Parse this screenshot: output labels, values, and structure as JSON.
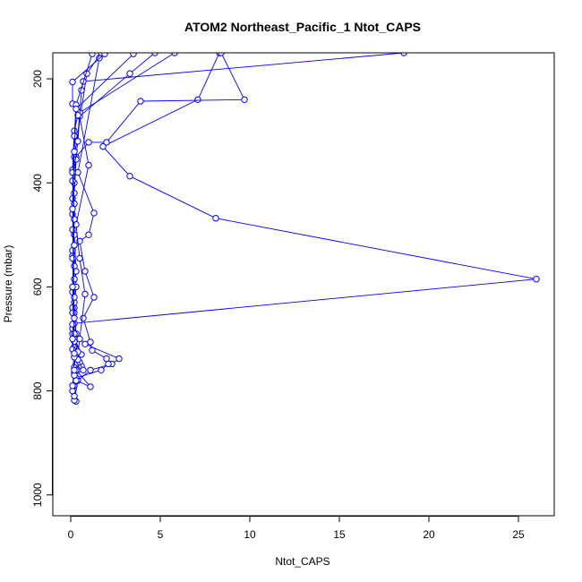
{
  "chart_data": {
    "type": "line",
    "title": "ATOM2 Northeast_Pacific_1 Ntot_CAPS",
    "xlabel": "Ntot_CAPS",
    "ylabel": "Pressure (mbar)",
    "xlim": [
      -1,
      27
    ],
    "ylim": [
      1040,
      150
    ],
    "y_reversed": true,
    "grid": false,
    "legend": "none",
    "xticks": [
      0,
      5,
      10,
      15,
      20,
      25
    ],
    "yticks": [
      200,
      400,
      600,
      800,
      1000
    ],
    "colors": {
      "series": "#0000ff",
      "axis": "#000000",
      "background": "#ffffff"
    },
    "marker": "open-circle",
    "series": [
      {
        "points": [
          [
            0.3,
            820
          ],
          [
            0.2,
            790
          ],
          [
            0.3,
            760
          ],
          [
            0.2,
            735
          ],
          [
            0.3,
            700
          ],
          [
            0.2,
            670
          ],
          [
            26.0,
            585
          ],
          [
            8.1,
            468
          ],
          [
            3.3,
            387
          ],
          [
            1.8,
            330
          ],
          [
            7.1,
            240
          ],
          [
            8.3,
            150
          ]
        ]
      },
      {
        "points": [
          [
            0.2,
            818
          ],
          [
            0.4,
            780
          ],
          [
            1.1,
            760
          ],
          [
            2.3,
            748
          ],
          [
            2.7,
            738
          ],
          [
            0.8,
            710
          ],
          [
            0.3,
            690
          ],
          [
            0.2,
            640
          ],
          [
            0.3,
            600
          ],
          [
            0.2,
            520
          ],
          [
            0.1,
            460
          ],
          [
            0.2,
            400
          ],
          [
            0.3,
            350
          ],
          [
            1.0,
            322
          ],
          [
            2.0,
            322
          ],
          [
            3.9,
            243
          ],
          [
            9.7,
            240
          ],
          [
            8.4,
            150
          ]
        ]
      },
      {
        "points": [
          [
            0.2,
            810
          ],
          [
            0.3,
            775
          ],
          [
            1.7,
            760
          ],
          [
            2.1,
            748
          ],
          [
            2.0,
            738
          ],
          [
            1.2,
            722
          ],
          [
            1.1,
            706
          ],
          [
            0.7,
            660
          ],
          [
            1.3,
            620
          ],
          [
            0.8,
            570
          ],
          [
            0.5,
            512
          ],
          [
            1.0,
            500
          ],
          [
            1.3,
            458
          ],
          [
            0.4,
            380
          ],
          [
            1.6,
            160
          ],
          [
            1.9,
            150
          ]
        ]
      },
      {
        "points": [
          [
            0.1,
            800
          ],
          [
            0.2,
            765
          ],
          [
            0.3,
            748
          ],
          [
            0.6,
            752
          ],
          [
            0.4,
            730
          ],
          [
            0.5,
            700
          ],
          [
            0.8,
            614
          ],
          [
            0.5,
            545
          ],
          [
            0.3,
            480
          ],
          [
            1.0,
            366
          ],
          [
            0.5,
            272
          ],
          [
            3.3,
            190
          ],
          [
            4.7,
            150
          ]
        ]
      },
      {
        "points": [
          [
            0.1,
            790
          ],
          [
            0.2,
            755
          ],
          [
            0.3,
            720
          ],
          [
            0.6,
            730
          ],
          [
            0.1,
            690
          ],
          [
            0.2,
            650
          ],
          [
            0.1,
            610
          ],
          [
            0.3,
            570
          ],
          [
            0.2,
            500
          ],
          [
            0.1,
            430
          ],
          [
            0.2,
            350
          ],
          [
            0.9,
            190
          ],
          [
            1.7,
            150
          ]
        ]
      },
      {
        "points": [
          [
            0.3,
            780
          ],
          [
            1.1,
            792
          ],
          [
            0.3,
            760
          ],
          [
            0.5,
            745
          ],
          [
            0.2,
            700
          ],
          [
            0.1,
            640
          ],
          [
            0.2,
            560
          ],
          [
            0.1,
            490
          ],
          [
            0.2,
            420
          ],
          [
            0.3,
            355
          ],
          [
            0.5,
            265
          ],
          [
            5.8,
            150
          ]
        ]
      },
      {
        "points": [
          [
            0.2,
            770
          ],
          [
            0.7,
            760
          ],
          [
            0.4,
            740
          ],
          [
            0.2,
            715
          ],
          [
            0.1,
            680
          ],
          [
            0.2,
            630
          ],
          [
            0.1,
            540
          ],
          [
            0.2,
            470
          ],
          [
            0.1,
            396
          ],
          [
            0.4,
            320
          ],
          [
            0.6,
            222
          ],
          [
            0.7,
            205
          ],
          [
            18.6,
            150
          ]
        ]
      },
      {
        "points": [
          [
            0.2,
            760
          ],
          [
            0.1,
            720
          ],
          [
            0.2,
            690
          ],
          [
            0.1,
            650
          ],
          [
            0.2,
            585
          ],
          [
            0.1,
            530
          ],
          [
            0.2,
            440
          ],
          [
            0.1,
            375
          ],
          [
            0.2,
            300
          ],
          [
            0.4,
            270
          ],
          [
            0.1,
            248
          ],
          [
            0.1,
            206
          ],
          [
            1.9,
            152
          ]
        ]
      },
      {
        "points": [
          [
            0.2,
            735
          ],
          [
            0.4,
            725
          ],
          [
            0.2,
            705
          ],
          [
            0.1,
            672
          ],
          [
            0.2,
            620
          ],
          [
            0.1,
            545
          ],
          [
            0.2,
            470
          ],
          [
            0.1,
            380
          ],
          [
            0.2,
            310
          ],
          [
            0.3,
            250
          ],
          [
            1.2,
            152
          ]
        ]
      },
      {
        "points": [
          [
            0.2,
            728
          ],
          [
            0.1,
            700
          ],
          [
            0.2,
            660
          ],
          [
            0.1,
            600
          ],
          [
            0.2,
            520
          ],
          [
            0.1,
            450
          ],
          [
            0.2,
            340
          ],
          [
            0.3,
            258
          ],
          [
            3.5,
            152
          ]
        ]
      }
    ]
  }
}
